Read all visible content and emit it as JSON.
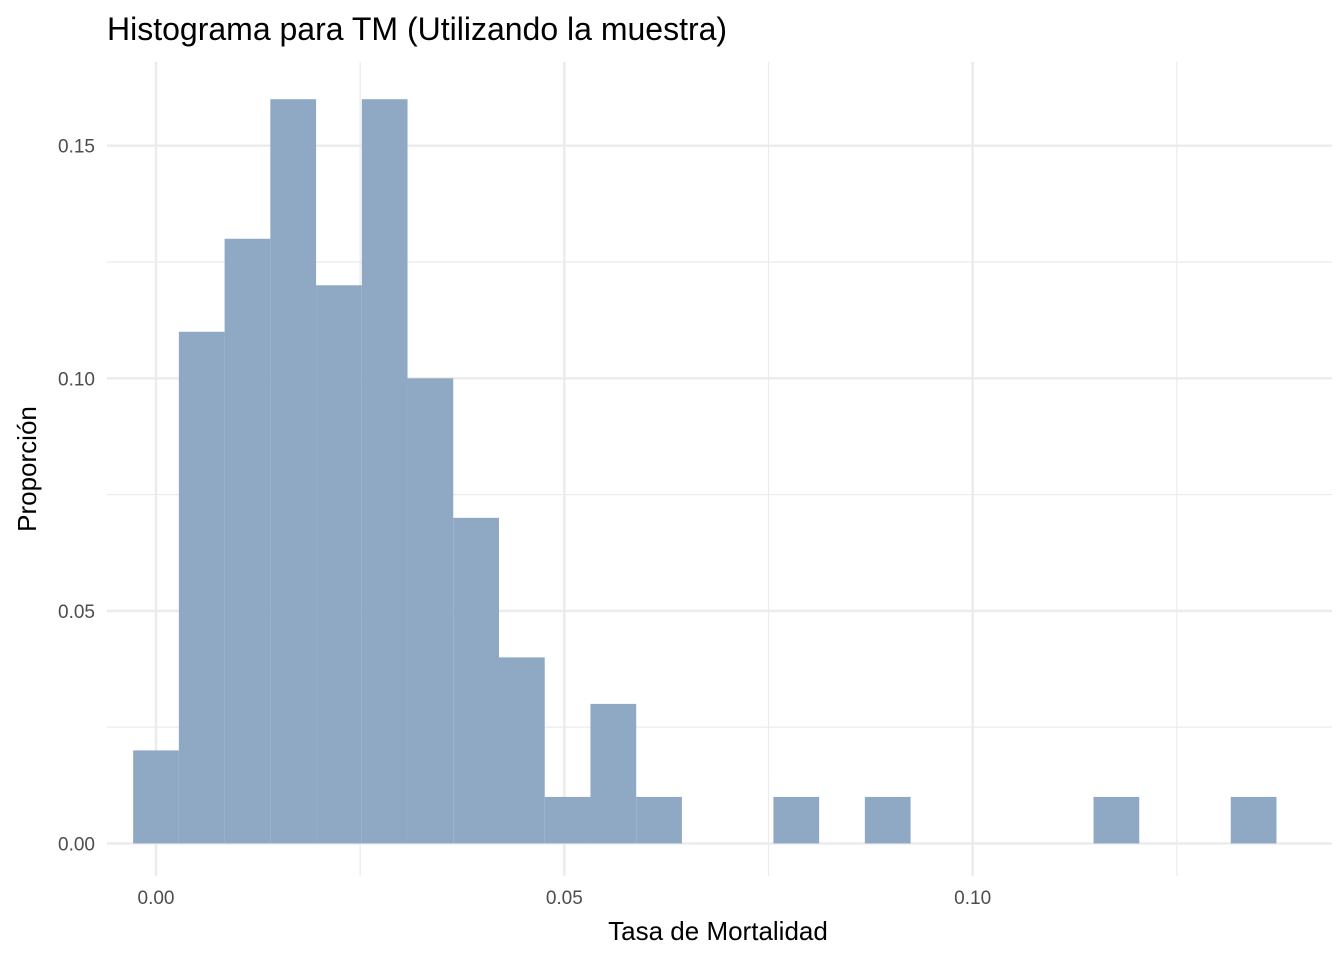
{
  "chart_data": {
    "type": "bar",
    "title": "Histograma para TM (Utilizando la muestra)",
    "xlabel": "Tasa de Mortalidad",
    "ylabel": "Proporción",
    "xlim": [
      -0.006,
      0.144
    ],
    "ylim": [
      -0.007,
      0.168
    ],
    "x_ticks": [
      {
        "value": 0.0,
        "label": "0.00"
      },
      {
        "value": 0.05,
        "label": "0.05"
      },
      {
        "value": 0.1,
        "label": "0.10"
      }
    ],
    "y_ticks": [
      {
        "value": 0.0,
        "label": "0.00"
      },
      {
        "value": 0.05,
        "label": "0.05"
      },
      {
        "value": 0.1,
        "label": "0.10"
      },
      {
        "value": 0.15,
        "label": "0.15"
      }
    ],
    "x_minor": [
      0.025,
      0.075,
      0.125
    ],
    "y_minor": [
      0.025,
      0.075,
      0.125
    ],
    "bin_width": 0.0056,
    "bins": [
      {
        "x0": -0.0028,
        "y": 0.02
      },
      {
        "x0": 0.0028,
        "y": 0.11
      },
      {
        "x0": 0.0084,
        "y": 0.13
      },
      {
        "x0": 0.014,
        "y": 0.16
      },
      {
        "x0": 0.0196,
        "y": 0.12
      },
      {
        "x0": 0.0252,
        "y": 0.16
      },
      {
        "x0": 0.0308,
        "y": 0.1
      },
      {
        "x0": 0.0364,
        "y": 0.07
      },
      {
        "x0": 0.042,
        "y": 0.04
      },
      {
        "x0": 0.0476,
        "y": 0.01
      },
      {
        "x0": 0.0532,
        "y": 0.03
      },
      {
        "x0": 0.0588,
        "y": 0.01
      },
      {
        "x0": 0.0756,
        "y": 0.01
      },
      {
        "x0": 0.0868,
        "y": 0.01
      },
      {
        "x0": 0.1148,
        "y": 0.01
      },
      {
        "x0": 0.1316,
        "y": 0.01
      }
    ],
    "bar_color": "#8fa8c3",
    "grid": true,
    "legend": "none"
  }
}
